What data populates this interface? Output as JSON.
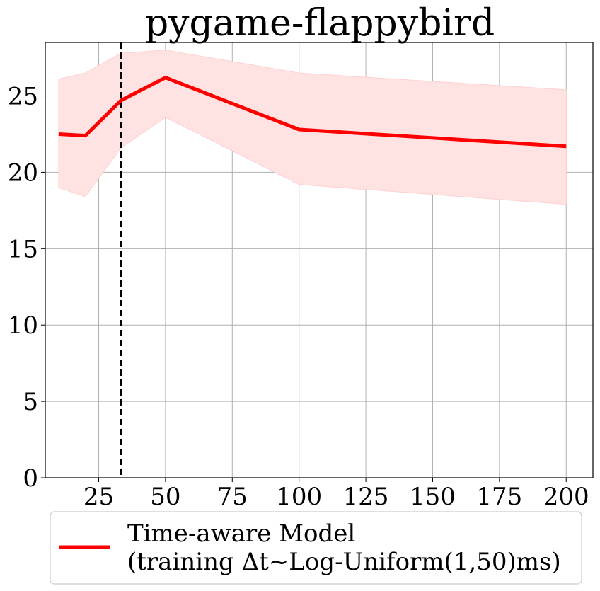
{
  "chart_data": {
    "type": "line",
    "title": "pygame-flappybird",
    "xlabel": "",
    "ylabel": "",
    "xlim": [
      5,
      210
    ],
    "ylim": [
      0,
      28.5
    ],
    "xticks": [
      25,
      50,
      75,
      100,
      125,
      150,
      175,
      200
    ],
    "yticks": [
      0,
      5,
      10,
      15,
      20,
      25
    ],
    "grid": true,
    "legend": {
      "position": "below"
    },
    "vline": {
      "x": 33.3,
      "style": "dashed",
      "color": "#000000"
    },
    "series": [
      {
        "name": "Time-aware Model\n(training Δt~Log-Uniform(1,50)ms)",
        "legend_lines": [
          "Time-aware Model",
          "(training Δt~Log-Uniform(1,50)ms)"
        ],
        "color": "#ff0000",
        "x": [
          10,
          20,
          33.3,
          50,
          100,
          200
        ],
        "y": [
          22.5,
          22.4,
          24.7,
          26.2,
          22.8,
          21.7
        ],
        "y_upper": [
          26.1,
          26.5,
          27.8,
          28.0,
          26.5,
          25.4
        ],
        "y_lower": [
          19.0,
          18.4,
          21.6,
          23.6,
          19.2,
          17.9
        ],
        "band_color": "#ffe3e3"
      }
    ]
  }
}
